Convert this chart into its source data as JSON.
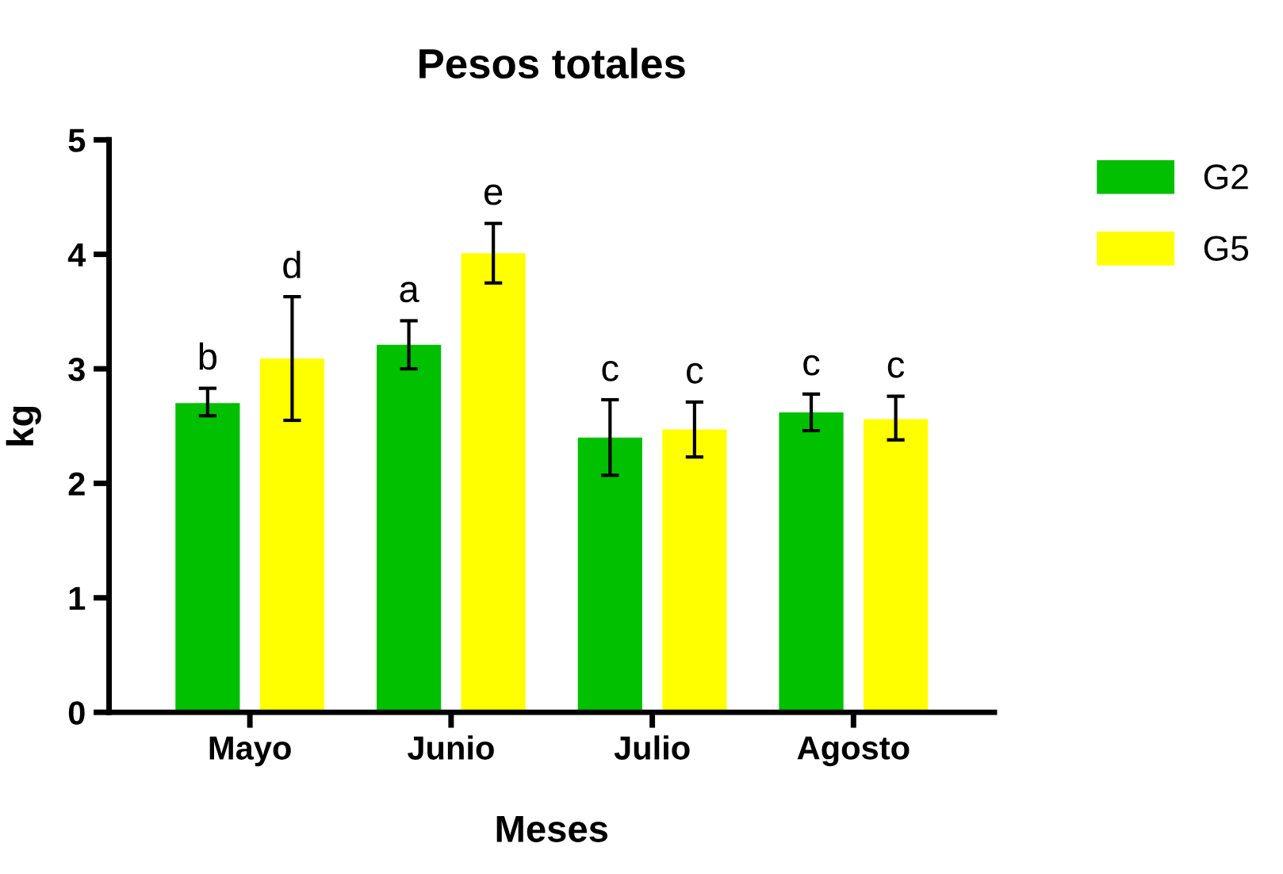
{
  "chart_data": {
    "type": "bar",
    "title": "Pesos totales",
    "xlabel": "Meses",
    "ylabel": "kg",
    "categories": [
      "Mayo",
      "Junio",
      "Julio",
      "Agosto"
    ],
    "series": [
      {
        "name": "G2",
        "color": "#00c000",
        "values": [
          2.7,
          3.21,
          2.4,
          2.62
        ],
        "errors": [
          [
            2.59,
            2.83
          ],
          [
            3.0,
            3.42
          ],
          [
            2.07,
            2.73
          ],
          [
            2.46,
            2.78
          ]
        ],
        "value_labels": [
          "b",
          "a",
          "c",
          "c"
        ]
      },
      {
        "name": "G5",
        "color": "#ffff00",
        "values": [
          3.09,
          4.01,
          2.47,
          2.56
        ],
        "errors": [
          [
            2.55,
            3.63
          ],
          [
            3.75,
            4.27
          ],
          [
            2.23,
            2.71
          ],
          [
            2.38,
            2.76
          ]
        ],
        "value_labels": [
          "d",
          "e",
          "c",
          "c"
        ]
      }
    ],
    "ylim": [
      0,
      5
    ],
    "yticks": [
      0,
      1,
      2,
      3,
      4,
      5
    ],
    "grid": false,
    "legend": "top right"
  }
}
